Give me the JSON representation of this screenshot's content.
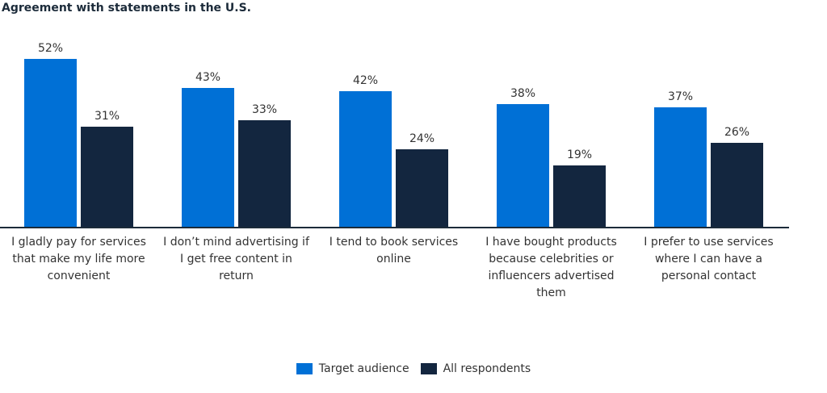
{
  "chart_data": {
    "type": "bar",
    "title": "Agreement with statements in the U.S.",
    "categories": [
      "I gladly pay for services that make my life more convenient",
      "I don’t mind advertising if I get free content in return",
      "I tend to book services online",
      "I have bought products because celebrities or influencers advertised them",
      "I prefer to use services where I can have a personal contact"
    ],
    "series": [
      {
        "name": "Target audience",
        "color": "#0070d6",
        "values": [
          52,
          43,
          42,
          38,
          37
        ]
      },
      {
        "name": "All respondents",
        "color": "#13263f",
        "values": [
          31,
          33,
          24,
          19,
          26
        ]
      }
    ],
    "value_suffix": "%",
    "xlabel": "",
    "ylabel": "",
    "ylim": [
      0,
      52
    ],
    "grid": false,
    "legend_position": "bottom-center"
  }
}
